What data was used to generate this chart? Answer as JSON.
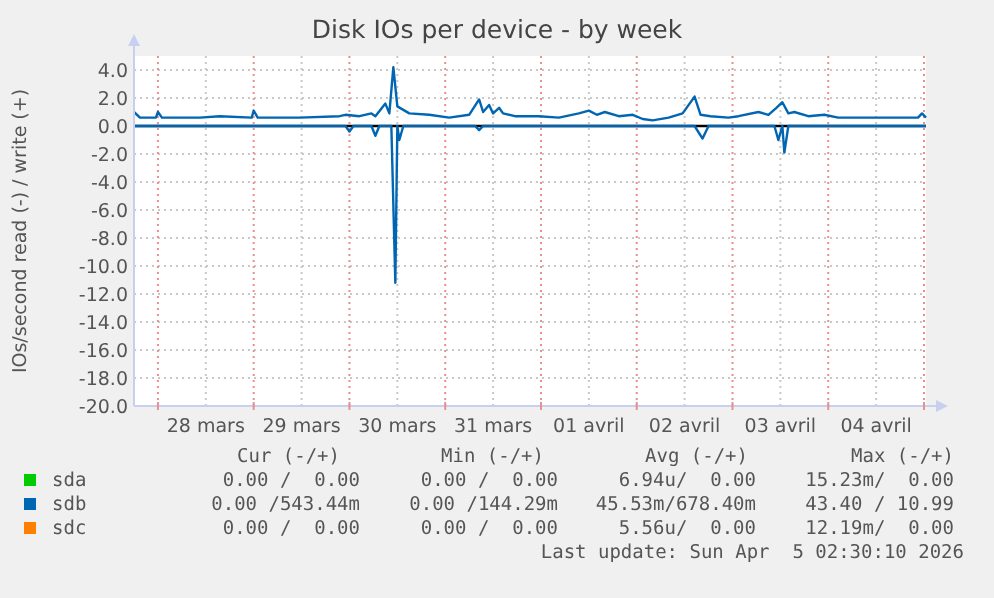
{
  "chart_data": {
    "type": "line",
    "title": "Disk IOs per device - by week",
    "ylabel": "IOs/second read (-) / write (+)",
    "xlim": [
      "2026-03-27T18:00",
      "2026-04-05T00:30"
    ],
    "xticks": [
      {
        "value": "2026-03-28T00:00",
        "label": null
      },
      {
        "value": "2026-03-28T12:00",
        "label": "28 mars"
      },
      {
        "value": "2026-03-29T00:00",
        "label": null
      },
      {
        "value": "2026-03-29T12:00",
        "label": "29 mars"
      },
      {
        "value": "2026-03-30T00:00",
        "label": null
      },
      {
        "value": "2026-03-30T12:00",
        "label": "30 mars"
      },
      {
        "value": "2026-03-31T00:00",
        "label": null
      },
      {
        "value": "2026-03-31T12:00",
        "label": "31 mars"
      },
      {
        "value": "2026-04-01T00:00",
        "label": null
      },
      {
        "value": "2026-04-01T12:00",
        "label": "01 avril"
      },
      {
        "value": "2026-04-02T00:00",
        "label": null
      },
      {
        "value": "2026-04-02T12:00",
        "label": "02 avril"
      },
      {
        "value": "2026-04-03T00:00",
        "label": null
      },
      {
        "value": "2026-04-03T12:00",
        "label": "03 avril"
      },
      {
        "value": "2026-04-04T00:00",
        "label": null
      },
      {
        "value": "2026-04-04T12:00",
        "label": "04 avril"
      },
      {
        "value": "2026-04-05T00:00",
        "label": null
      }
    ],
    "ylim": [
      -20,
      5
    ],
    "yticks": [
      {
        "value": 4,
        "label": "4.0"
      },
      {
        "value": 2,
        "label": "2.0"
      },
      {
        "value": 0,
        "label": "0.0"
      },
      {
        "value": -2,
        "label": "-2.0"
      },
      {
        "value": -4,
        "label": "-4.0"
      },
      {
        "value": -6,
        "label": "-6.0"
      },
      {
        "value": -8,
        "label": "-8.0"
      },
      {
        "value": -10,
        "label": "-10.0"
      },
      {
        "value": -12,
        "label": "-12.0"
      },
      {
        "value": -14,
        "label": "-14.0"
      },
      {
        "value": -16,
        "label": "-16.0"
      },
      {
        "value": -18,
        "label": "-18.0"
      },
      {
        "value": -20,
        "label": "-20.0"
      }
    ],
    "grid": true,
    "legend": "bottom",
    "ref_lines": [
      {
        "axis": "y",
        "value": 0,
        "color": "#000000"
      }
    ],
    "series": [
      {
        "name": "sda",
        "color": "#00cc00"
      },
      {
        "name": "sdb",
        "color": "#0066b3",
        "x": [
          "2026-03-27T18:00",
          "2026-03-27T19:30",
          "2026-03-27T23:30",
          "2026-03-28T00:00",
          "2026-03-28T01:00",
          "2026-03-28T10:30",
          "2026-03-28T15:30",
          "2026-03-28T23:30",
          "2026-03-29T00:00",
          "2026-03-29T01:00",
          "2026-03-29T11:30",
          "2026-03-29T21:30",
          "2026-03-29T23:00",
          "2026-03-30T02:30",
          "2026-03-30T05:30",
          "2026-03-30T06:30",
          "2026-03-30T09:00",
          "2026-03-30T10:00",
          "2026-03-30T11:00",
          "2026-03-30T12:00",
          "2026-03-30T15:00",
          "2026-03-30T20:00",
          "2026-03-31T01:00",
          "2026-03-31T06:00",
          "2026-03-31T08:30",
          "2026-03-31T09:30",
          "2026-03-31T11:00",
          "2026-03-31T12:00",
          "2026-03-31T13:30",
          "2026-03-31T14:30",
          "2026-03-31T17:30",
          "2026-03-31T23:30",
          "2026-04-01T04:30",
          "2026-04-01T09:30",
          "2026-04-01T12:00",
          "2026-04-01T14:00",
          "2026-04-01T16:00",
          "2026-04-01T19:30",
          "2026-04-01T23:00",
          "2026-04-02T01:30",
          "2026-04-02T04:00",
          "2026-04-02T08:00",
          "2026-04-02T11:30",
          "2026-04-02T14:30",
          "2026-04-02T16:00",
          "2026-04-02T18:30",
          "2026-04-02T23:00",
          "2026-04-03T01:30",
          "2026-04-03T06:30",
          "2026-04-03T09:00",
          "2026-04-03T11:00",
          "2026-04-03T12:30",
          "2026-04-03T14:00",
          "2026-04-03T15:30",
          "2026-04-03T19:00",
          "2026-04-03T23:00",
          "2026-04-04T02:30",
          "2026-04-04T12:30",
          "2026-04-04T22:30",
          "2026-04-04T23:30",
          "2026-04-05T00:30"
        ],
        "values": [
          1.0,
          0.6,
          0.6,
          1.0,
          0.6,
          0.6,
          0.7,
          0.6,
          1.1,
          0.6,
          0.6,
          0.7,
          0.8,
          0.7,
          0.9,
          0.7,
          1.6,
          0.9,
          4.2,
          1.4,
          0.9,
          0.8,
          0.6,
          0.8,
          1.9,
          1.0,
          1.5,
          0.9,
          1.3,
          0.9,
          0.7,
          0.7,
          0.6,
          0.9,
          1.1,
          0.8,
          1.0,
          0.7,
          0.8,
          0.5,
          0.4,
          0.6,
          0.9,
          2.1,
          0.8,
          0.7,
          0.6,
          0.7,
          1.0,
          0.8,
          1.3,
          1.7,
          0.9,
          1.0,
          0.7,
          0.8,
          0.6,
          0.6,
          0.6,
          0.9,
          0.6
        ]
      },
      {
        "color": "#0066b3",
        "x": [
          "2026-03-27T18:00",
          "2026-03-29T23:00",
          "2026-03-30T00:00",
          "2026-03-30T01:00",
          "2026-03-30T05:30",
          "2026-03-30T06:30",
          "2026-03-30T07:30",
          "2026-03-30T10:30",
          "2026-03-30T11:30",
          "2026-03-30T12:00",
          "2026-03-30T12:30",
          "2026-03-30T13:30",
          "2026-03-31T07:30",
          "2026-03-31T08:30",
          "2026-03-31T09:30",
          "2026-04-02T14:30",
          "2026-04-02T16:30",
          "2026-04-02T18:00",
          "2026-04-03T10:30",
          "2026-04-03T11:30",
          "2026-04-03T12:30",
          "2026-04-03T13:00",
          "2026-04-03T14:00",
          "2026-04-05T00:30"
        ],
        "values": [
          0,
          0,
          -0.4,
          0,
          0,
          -0.7,
          0,
          0,
          -11.2,
          0,
          -1.0,
          0,
          0,
          -0.3,
          0,
          0,
          -0.9,
          0,
          0,
          -1.0,
          0,
          -1.9,
          0,
          0
        ]
      },
      {
        "name": "sdc",
        "color": "#ff8000"
      }
    ],
    "annotations": [
      "Cur (-/+)",
      "Min (-/+)",
      "Avg (-/+)",
      "Max (-/+)",
      "0.00 /  0.00",
      "0.00 /  0.00",
      "6.94u/  0.00",
      "15.23m/  0.00",
      "0.00 /543.44m",
      "0.00 /144.29m",
      "45.53m/678.40m",
      "43.40 / 10.99",
      "0.00 /  0.00",
      "0.00 /  0.00",
      "5.56u/  0.00",
      "12.19m/  0.00",
      "Last update: Sun Apr  5 02:30:10 2026"
    ]
  }
}
